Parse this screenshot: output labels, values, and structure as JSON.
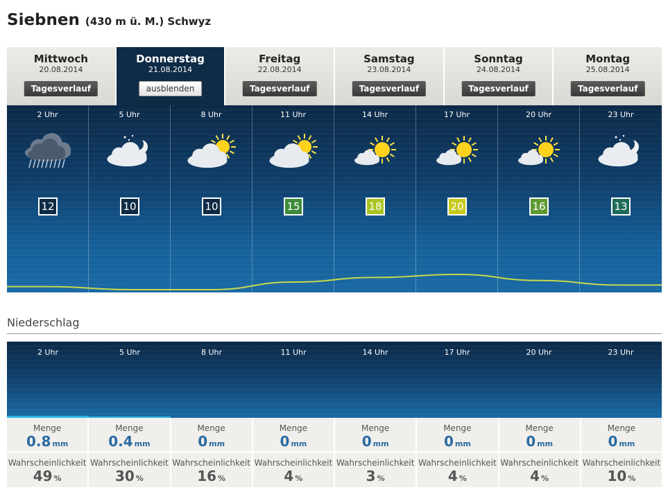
{
  "location": {
    "name": "Siebnen",
    "detail": "(430 m ü. M.) Schwyz"
  },
  "days": [
    {
      "name": "Mittwoch",
      "date": "20.08.2014",
      "button": "Tagesverlauf",
      "active": false
    },
    {
      "name": "Donnerstag",
      "date": "21.08.2014",
      "button": "ausblenden",
      "active": true
    },
    {
      "name": "Freitag",
      "date": "22.08.2014",
      "button": "Tagesverlauf",
      "active": false
    },
    {
      "name": "Samstag",
      "date": "23.08.2014",
      "button": "Tagesverlauf",
      "active": false
    },
    {
      "name": "Sonntag",
      "date": "24.08.2014",
      "button": "Tagesverlauf",
      "active": false
    },
    {
      "name": "Montag",
      "date": "25.08.2014",
      "button": "Tagesverlauf",
      "active": false
    }
  ],
  "hourly": [
    {
      "hour": "2 Uhr",
      "icon": "rain-cloud-icon",
      "temp": "12",
      "temp_color": "#0f2b45"
    },
    {
      "hour": "5 Uhr",
      "icon": "moon-cloud-icon",
      "temp": "10",
      "temp_color": "#0f2b45"
    },
    {
      "hour": "8 Uhr",
      "icon": "sun-cloud-icon",
      "temp": "10",
      "temp_color": "#0f2b45"
    },
    {
      "hour": "11 Uhr",
      "icon": "sun-cloud-icon",
      "temp": "15",
      "temp_color": "#3d8c3b"
    },
    {
      "hour": "14 Uhr",
      "icon": "sun-small-cloud-icon",
      "temp": "18",
      "temp_color": "#a9c421"
    },
    {
      "hour": "17 Uhr",
      "icon": "sun-small-cloud-icon",
      "temp": "20",
      "temp_color": "#c7c91f"
    },
    {
      "hour": "20 Uhr",
      "icon": "sun-small-cloud-icon",
      "temp": "16",
      "temp_color": "#5e9a33"
    },
    {
      "hour": "23 Uhr",
      "icon": "moon-cloud-icon",
      "temp": "13",
      "temp_color": "#1f6b5a"
    }
  ],
  "temperature_curve_color": "#c9d84a",
  "precipitation": {
    "label": "Niederschlag",
    "menge_label": "Menge",
    "wahrscheinlichkeit_label": "Wahrscheinlichkeit",
    "menge_unit": "mm",
    "wahrscheinlichkeit_unit": "%",
    "hours": [
      "2 Uhr",
      "5 Uhr",
      "8 Uhr",
      "11 Uhr",
      "14 Uhr",
      "17 Uhr",
      "20 Uhr",
      "23 Uhr"
    ],
    "menge": [
      "0.8",
      "0.4",
      "0",
      "0",
      "0",
      "0",
      "0",
      "0"
    ],
    "wahrscheinlichkeit": [
      "49",
      "30",
      "16",
      "4",
      "3",
      "4",
      "4",
      "10"
    ]
  }
}
